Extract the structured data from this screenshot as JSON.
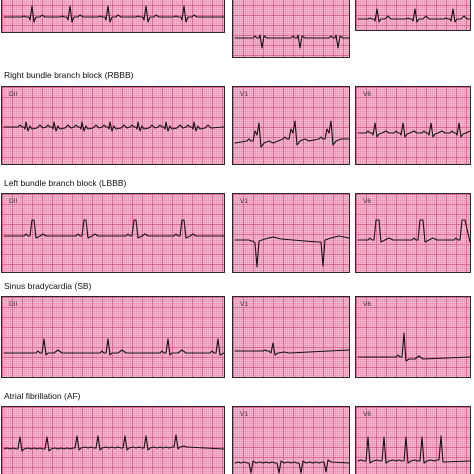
{
  "sections": [
    {
      "title": "",
      "leads": [
        "",
        "",
        ""
      ]
    },
    {
      "title": "Right bundle branch block (RBBB)",
      "leads": [
        "DII",
        "V1",
        "V6"
      ]
    },
    {
      "title": "Left bundle branch block (LBBB)",
      "leads": [
        "DII",
        "V1",
        "V6"
      ]
    },
    {
      "title": "Sinus bradycardia (SB)",
      "leads": [
        "DII",
        "V1",
        "V6"
      ]
    },
    {
      "title": "Atrial fibrillation (AF)",
      "leads": [
        "",
        "V1",
        "V6"
      ]
    }
  ],
  "colors": {
    "paper": "#f7bfd4",
    "major_grid": "#ce3c73",
    "minor_grid": "#e278a0",
    "trace": "#141414",
    "border": "#2a2a2a"
  }
}
